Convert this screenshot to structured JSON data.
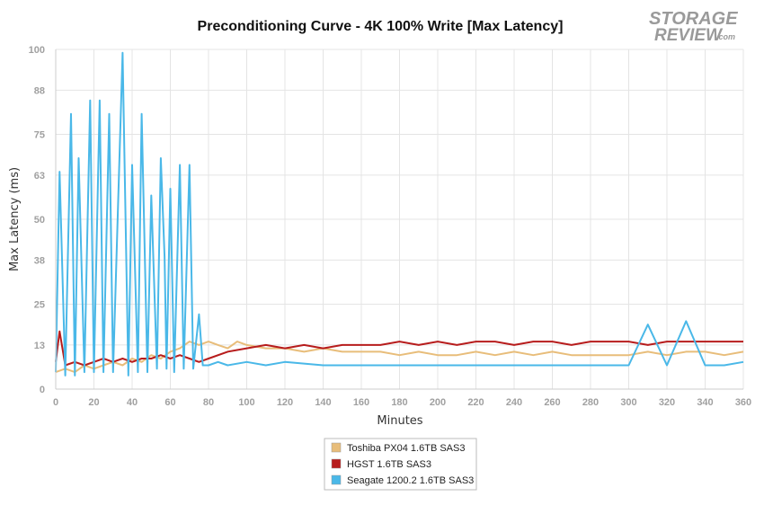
{
  "logo": {
    "line1": "STORAGE",
    "line2": "REVIEW",
    "suffix": ".com"
  },
  "chart_data": {
    "type": "line",
    "title": "Preconditioning Curve - 4K 100% Write [Max Latency]",
    "xlabel": "Minutes",
    "ylabel": "Max Latency (ms)",
    "xlim": [
      0,
      360
    ],
    "ylim": [
      0,
      100
    ],
    "xticks": [
      0,
      20,
      40,
      60,
      80,
      100,
      120,
      140,
      160,
      180,
      200,
      220,
      240,
      260,
      280,
      300,
      320,
      340,
      360
    ],
    "yticks": [
      0,
      13,
      25,
      38,
      50,
      63,
      75,
      88,
      100
    ],
    "grid": true,
    "legend_position": "bottom",
    "series": [
      {
        "name": "Toshiba PX04 1.6TB SAS3",
        "color": "#e8bd7a",
        "x": [
          0,
          5,
          10,
          15,
          20,
          25,
          30,
          35,
          40,
          45,
          50,
          55,
          60,
          65,
          70,
          75,
          80,
          85,
          90,
          95,
          100,
          110,
          120,
          130,
          140,
          150,
          160,
          170,
          180,
          190,
          200,
          210,
          220,
          230,
          240,
          250,
          260,
          270,
          280,
          290,
          300,
          310,
          320,
          330,
          340,
          350,
          360
        ],
        "y": [
          5,
          6,
          5,
          7,
          6,
          7,
          8,
          7,
          9,
          8,
          10,
          9,
          11,
          12,
          14,
          13,
          14,
          13,
          12,
          14,
          13,
          12,
          12,
          11,
          12,
          11,
          11,
          11,
          10,
          11,
          10,
          10,
          11,
          10,
          11,
          10,
          11,
          10,
          10,
          10,
          10,
          11,
          10,
          11,
          11,
          10,
          11
        ]
      },
      {
        "name": "HGST 1.6TB SAS3",
        "color": "#b71c1c",
        "x": [
          0,
          2,
          5,
          10,
          15,
          20,
          25,
          30,
          35,
          40,
          45,
          50,
          55,
          60,
          65,
          70,
          75,
          80,
          90,
          100,
          110,
          120,
          130,
          140,
          150,
          160,
          170,
          180,
          190,
          200,
          210,
          220,
          230,
          240,
          250,
          260,
          270,
          280,
          290,
          300,
          310,
          320,
          330,
          340,
          350,
          360
        ],
        "y": [
          8,
          17,
          7,
          8,
          7,
          8,
          9,
          8,
          9,
          8,
          9,
          9,
          10,
          9,
          10,
          9,
          8,
          9,
          11,
          12,
          13,
          12,
          13,
          12,
          13,
          13,
          13,
          14,
          13,
          14,
          13,
          14,
          14,
          13,
          14,
          14,
          13,
          14,
          14,
          14,
          13,
          14,
          14,
          14,
          14,
          14
        ]
      },
      {
        "name": "Seagate 1200.2 1.6TB SAS3",
        "color": "#4ab8e8",
        "x": [
          0,
          2,
          5,
          8,
          10,
          12,
          15,
          18,
          20,
          23,
          25,
          28,
          30,
          35,
          38,
          40,
          43,
          45,
          48,
          50,
          53,
          55,
          57,
          58,
          60,
          62,
          65,
          67,
          70,
          72,
          75,
          77,
          80,
          85,
          90,
          100,
          110,
          120,
          140,
          160,
          180,
          200,
          220,
          240,
          260,
          280,
          300,
          310,
          320,
          330,
          340,
          350,
          360
        ],
        "y": [
          5,
          64,
          4,
          81,
          4,
          68,
          5,
          85,
          5,
          85,
          5,
          81,
          5,
          99,
          4,
          66,
          5,
          81,
          5,
          57,
          6,
          68,
          39,
          6,
          59,
          5,
          66,
          6,
          66,
          6,
          22,
          7,
          7,
          8,
          7,
          8,
          7,
          8,
          7,
          7,
          7,
          7,
          7,
          7,
          7,
          7,
          7,
          19,
          7,
          20,
          7,
          7,
          8
        ]
      }
    ]
  }
}
